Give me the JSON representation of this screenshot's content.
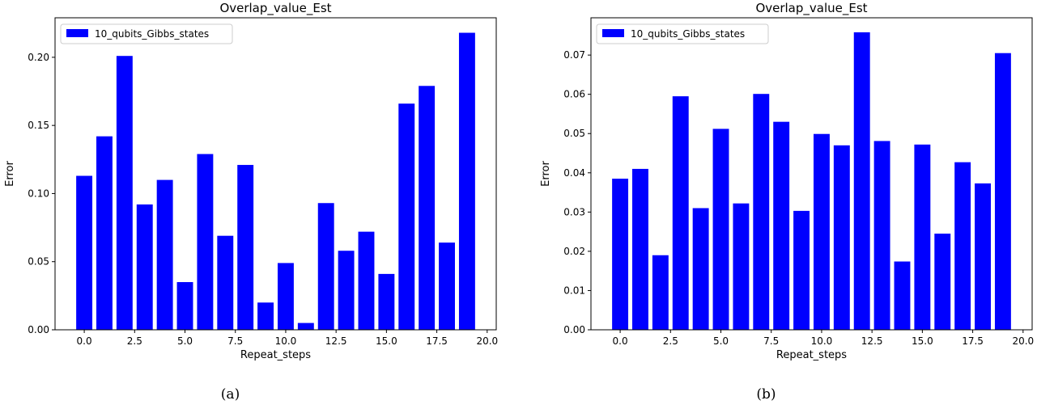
{
  "chart_data": [
    {
      "type": "bar",
      "title": "Overlap_value_Est",
      "xlabel": "Repeat_steps",
      "ylabel": "Error",
      "caption": "(a)",
      "legend": "10_qubits_Gibbs_states",
      "legend_position": "top-left",
      "color": "#0000ff",
      "grid": false,
      "x": [
        0,
        1,
        2,
        3,
        4,
        5,
        6,
        7,
        8,
        9,
        10,
        11,
        12,
        13,
        14,
        15,
        16,
        17,
        18,
        19
      ],
      "values": [
        0.113,
        0.142,
        0.201,
        0.092,
        0.11,
        0.035,
        0.129,
        0.069,
        0.121,
        0.02,
        0.049,
        0.005,
        0.093,
        0.058,
        0.072,
        0.041,
        0.166,
        0.179,
        0.064,
        0.218
      ],
      "xlim": [
        -1.45,
        20.45
      ],
      "ylim": [
        0,
        0.229
      ],
      "xticks": [
        0.0,
        2.5,
        5.0,
        7.5,
        10.0,
        12.5,
        15.0,
        17.5,
        20.0
      ],
      "xtick_labels": [
        "0.0",
        "2.5",
        "5.0",
        "7.5",
        "10.0",
        "12.5",
        "15.0",
        "17.5",
        "20.0"
      ],
      "yticks": [
        0,
        0.05,
        0.1,
        0.15,
        0.2
      ],
      "ytick_labels": [
        "0.00",
        "0.05",
        "0.10",
        "0.15",
        "0.20"
      ]
    },
    {
      "type": "bar",
      "title": "Overlap_value_Est",
      "xlabel": "Repeat_steps",
      "ylabel": "Error",
      "caption": "(b)",
      "legend": "10_qubits_Gibbs_states",
      "legend_position": "top-left",
      "color": "#0000ff",
      "grid": false,
      "x": [
        0,
        1,
        2,
        3,
        4,
        5,
        6,
        7,
        8,
        9,
        10,
        11,
        12,
        13,
        14,
        15,
        16,
        17,
        18,
        19
      ],
      "values": [
        0.0385,
        0.041,
        0.019,
        0.0595,
        0.031,
        0.0512,
        0.0322,
        0.0601,
        0.053,
        0.0303,
        0.0499,
        0.047,
        0.0758,
        0.0481,
        0.0174,
        0.0472,
        0.0245,
        0.0427,
        0.0373,
        0.0705
      ],
      "xlim": [
        -1.45,
        20.45
      ],
      "ylim": [
        0,
        0.0795
      ],
      "xticks": [
        0.0,
        2.5,
        5.0,
        7.5,
        10.0,
        12.5,
        15.0,
        17.5,
        20.0
      ],
      "xtick_labels": [
        "0.0",
        "2.5",
        "5.0",
        "7.5",
        "10.0",
        "12.5",
        "15.0",
        "17.5",
        "20.0"
      ],
      "yticks": [
        0,
        0.01,
        0.02,
        0.03,
        0.04,
        0.05,
        0.06,
        0.07
      ],
      "ytick_labels": [
        "0.00",
        "0.01",
        "0.02",
        "0.03",
        "0.04",
        "0.05",
        "0.06",
        "0.07"
      ]
    }
  ]
}
